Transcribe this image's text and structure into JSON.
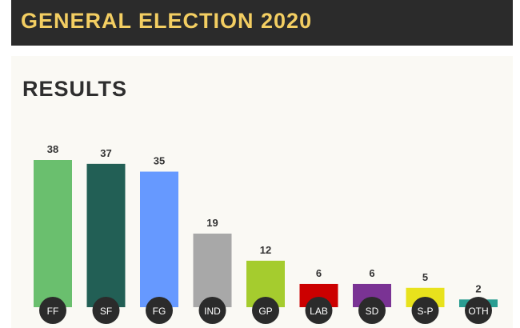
{
  "header": {
    "title": "GENERAL ELECTION 2020"
  },
  "panel": {
    "title": "RESULTS"
  },
  "chart_data": {
    "type": "bar",
    "title": "RESULTS",
    "categories": [
      "FF",
      "SF",
      "FG",
      "IND",
      "GP",
      "LAB",
      "SD",
      "S-P",
      "OTH"
    ],
    "values": [
      38,
      37,
      35,
      19,
      12,
      6,
      6,
      5,
      2
    ],
    "colors": [
      "#6abf6e",
      "#225f55",
      "#6699ff",
      "#a8a8a8",
      "#a5cc2e",
      "#cc0000",
      "#7a3394",
      "#e8e21c",
      "#2a9e92"
    ],
    "ylim": [
      0,
      38
    ],
    "xlabel": "",
    "ylabel": ""
  },
  "colors": {
    "header_bg": "#2b2b2b",
    "header_text": "#f3ce62",
    "panel_bg": "#faf9f4",
    "label_text": "#333333",
    "badge_bg": "#2b2b2b",
    "badge_text": "#ffffff"
  }
}
